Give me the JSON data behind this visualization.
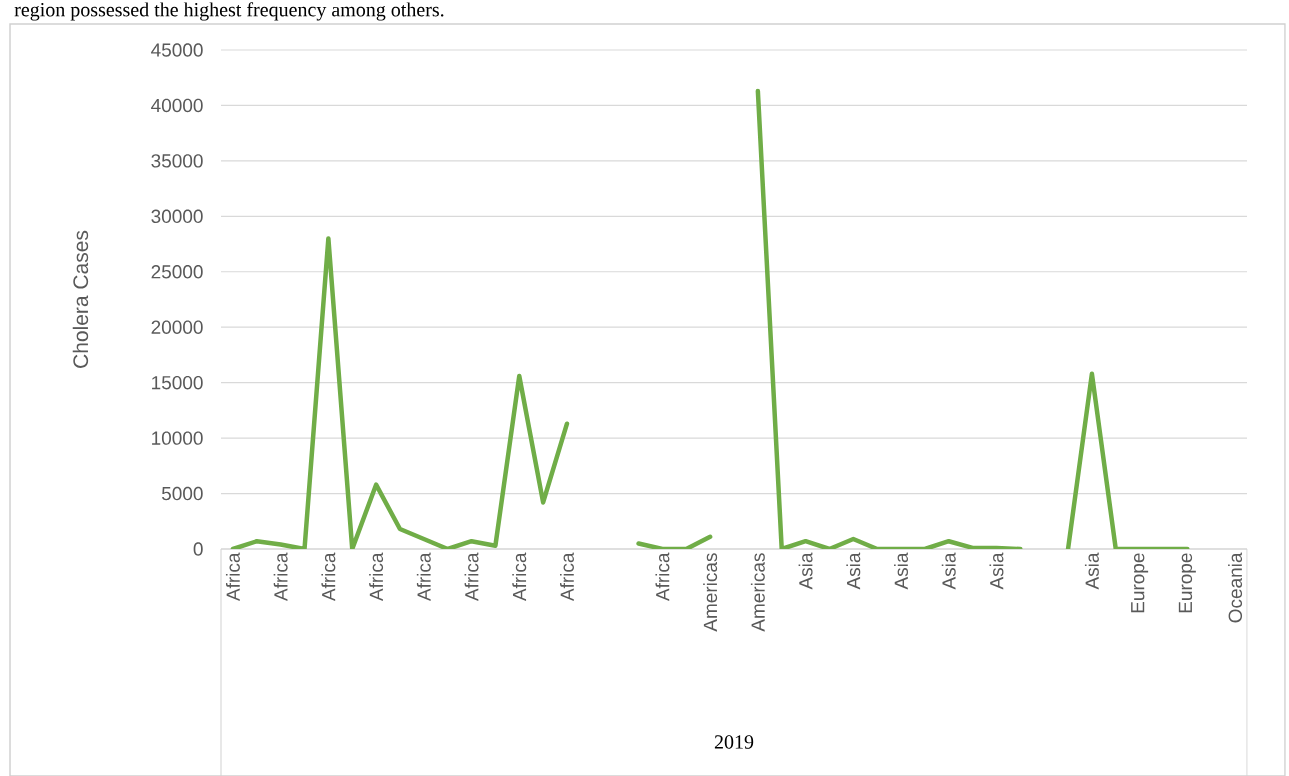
{
  "chart_data": {
    "type": "line",
    "annotations": [
      "region possessed the highest frequency among others.",
      "2019"
    ],
    "ylabel": "Cholera Cases",
    "categories": [
      "Africa",
      null,
      "Africa",
      null,
      "Africa",
      null,
      "Africa",
      null,
      "Africa",
      null,
      "Africa",
      null,
      "Africa",
      null,
      "Africa",
      null,
      null,
      null,
      "Africa",
      null,
      "Americas",
      null,
      "Americas",
      null,
      "Asia",
      null,
      "Asia",
      null,
      "Asia",
      null,
      "Asia",
      null,
      "Asia",
      null,
      null,
      null,
      "Asia",
      null,
      "Europe",
      null,
      "Europe",
      null,
      "Oceania"
    ],
    "values": [
      0,
      700,
      400,
      0,
      28000,
      0,
      5800,
      1800,
      900,
      0,
      700,
      300,
      15600,
      4200,
      11300,
      null,
      null,
      500,
      0,
      0,
      1100,
      null,
      41300,
      0,
      700,
      0,
      900,
      0,
      0,
      0,
      700,
      100,
      100,
      0,
      null,
      0,
      15800,
      0,
      0,
      0,
      0,
      null,
      null
    ],
    "color": "#70ad47",
    "ylim": [
      0,
      45000
    ],
    "yticks": [
      0,
      5000,
      10000,
      15000,
      20000,
      25000,
      30000,
      35000,
      40000,
      45000
    ],
    "grid": "y"
  }
}
